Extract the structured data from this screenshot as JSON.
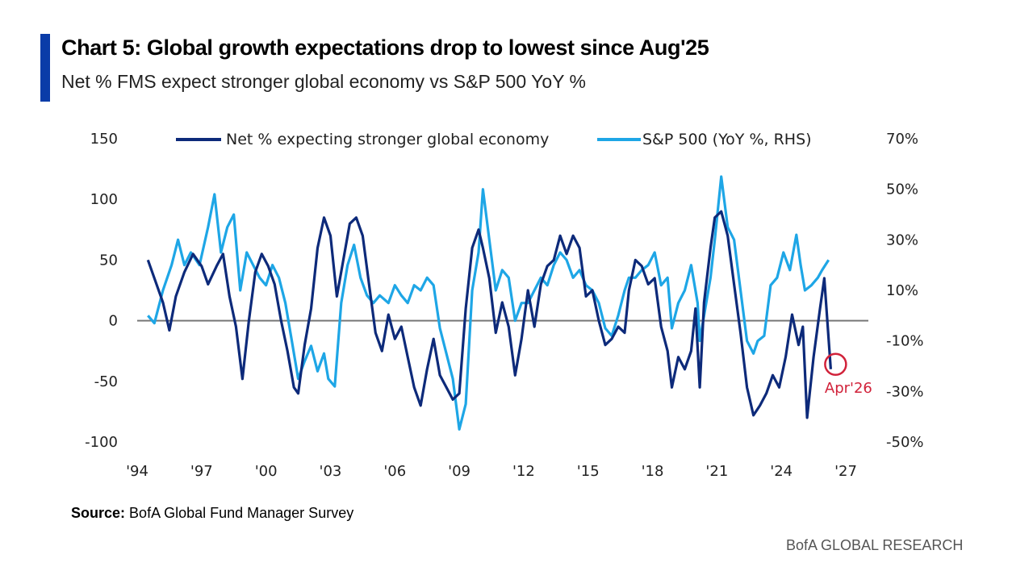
{
  "header": {
    "title": "Chart 5: Global growth expectations drop to lowest since Aug'25",
    "subtitle": "Net % FMS expect stronger global economy vs S&P 500 YoY %"
  },
  "footer": {
    "source_label": "Source:",
    "source_text": "BofA Global Fund Manager Survey",
    "brand": "BofA GLOBAL RESEARCH"
  },
  "colors": {
    "accent": "#0a3ca8",
    "series_dark": "#0d2a7a",
    "series_light": "#1ea6e6",
    "annotation": "#d1223a",
    "zero_line": "#777777"
  },
  "chart_data": {
    "type": "line",
    "title": "Chart 5: Global growth expectations drop to lowest since Aug'25",
    "subtitle": "Net % FMS expect stronger global economy vs S&P 500 YoY %",
    "xlim": [
      1994,
      2027
    ],
    "x_ticks": [
      1994,
      1997,
      2000,
      2003,
      2006,
      2009,
      2012,
      2015,
      2018,
      2021,
      2024,
      2027
    ],
    "x_tick_labels": [
      "'94",
      "'97",
      "'00",
      "'03",
      "'06",
      "'09",
      "'12",
      "'15",
      "'18",
      "'21",
      "'24",
      "'27"
    ],
    "ylim_left": [
      -100,
      150
    ],
    "y_left_ticks": [
      150,
      100,
      50,
      0,
      -50,
      -100
    ],
    "y_left_tick_labels": [
      "150",
      "100",
      "50",
      "0",
      "-50",
      "-100"
    ],
    "ylim_right": [
      -50,
      70
    ],
    "y_right_ticks": [
      70,
      50,
      30,
      10,
      -10,
      -30,
      -50
    ],
    "y_right_tick_labels": [
      "70%",
      "50%",
      "30%",
      "10%",
      "-10%",
      "-30%",
      "-50%"
    ],
    "legend_position": "top",
    "grid": false,
    "series": [
      {
        "name": "Net % expecting stronger global economy",
        "axis": "left",
        "color": "#0d2a7a",
        "points": [
          [
            1994.5,
            50
          ],
          [
            1994.8,
            35
          ],
          [
            1995.2,
            15
          ],
          [
            1995.5,
            -8
          ],
          [
            1995.8,
            20
          ],
          [
            1996.2,
            40
          ],
          [
            1996.6,
            55
          ],
          [
            1997.0,
            45
          ],
          [
            1997.3,
            30
          ],
          [
            1997.7,
            45
          ],
          [
            1998.0,
            55
          ],
          [
            1998.3,
            20
          ],
          [
            1998.6,
            -5
          ],
          [
            1998.9,
            -48
          ],
          [
            1999.2,
            0
          ],
          [
            1999.5,
            40
          ],
          [
            1999.8,
            55
          ],
          [
            2000.1,
            45
          ],
          [
            2000.4,
            30
          ],
          [
            2000.7,
            0
          ],
          [
            2001.0,
            -25
          ],
          [
            2001.3,
            -55
          ],
          [
            2001.5,
            -60
          ],
          [
            2001.8,
            -20
          ],
          [
            2002.1,
            10
          ],
          [
            2002.4,
            60
          ],
          [
            2002.7,
            85
          ],
          [
            2003.0,
            70
          ],
          [
            2003.3,
            20
          ],
          [
            2003.6,
            50
          ],
          [
            2003.9,
            80
          ],
          [
            2004.2,
            85
          ],
          [
            2004.5,
            70
          ],
          [
            2004.8,
            30
          ],
          [
            2005.1,
            -10
          ],
          [
            2005.4,
            -25
          ],
          [
            2005.7,
            5
          ],
          [
            2006.0,
            -15
          ],
          [
            2006.3,
            -5
          ],
          [
            2006.6,
            -30
          ],
          [
            2006.9,
            -55
          ],
          [
            2007.2,
            -70
          ],
          [
            2007.5,
            -40
          ],
          [
            2007.8,
            -15
          ],
          [
            2008.1,
            -45
          ],
          [
            2008.4,
            -55
          ],
          [
            2008.7,
            -65
          ],
          [
            2009.0,
            -60
          ],
          [
            2009.3,
            10
          ],
          [
            2009.6,
            60
          ],
          [
            2009.9,
            75
          ],
          [
            2010.1,
            60
          ],
          [
            2010.4,
            35
          ],
          [
            2010.7,
            -10
          ],
          [
            2011.0,
            15
          ],
          [
            2011.3,
            -5
          ],
          [
            2011.6,
            -45
          ],
          [
            2011.9,
            -15
          ],
          [
            2012.2,
            25
          ],
          [
            2012.5,
            -5
          ],
          [
            2012.8,
            30
          ],
          [
            2013.1,
            45
          ],
          [
            2013.4,
            50
          ],
          [
            2013.7,
            70
          ],
          [
            2014.0,
            55
          ],
          [
            2014.3,
            70
          ],
          [
            2014.6,
            60
          ],
          [
            2014.9,
            20
          ],
          [
            2015.2,
            25
          ],
          [
            2015.5,
            0
          ],
          [
            2015.8,
            -20
          ],
          [
            2016.1,
            -15
          ],
          [
            2016.4,
            -5
          ],
          [
            2016.7,
            -10
          ],
          [
            2016.9,
            25
          ],
          [
            2017.2,
            50
          ],
          [
            2017.5,
            45
          ],
          [
            2017.8,
            30
          ],
          [
            2018.1,
            35
          ],
          [
            2018.4,
            -5
          ],
          [
            2018.7,
            -25
          ],
          [
            2018.9,
            -55
          ],
          [
            2019.2,
            -30
          ],
          [
            2019.5,
            -40
          ],
          [
            2019.8,
            -25
          ],
          [
            2020.0,
            10
          ],
          [
            2020.2,
            -55
          ],
          [
            2020.4,
            15
          ],
          [
            2020.7,
            60
          ],
          [
            2020.9,
            85
          ],
          [
            2021.2,
            90
          ],
          [
            2021.5,
            70
          ],
          [
            2021.8,
            30
          ],
          [
            2022.1,
            -10
          ],
          [
            2022.4,
            -55
          ],
          [
            2022.7,
            -78
          ],
          [
            2023.0,
            -70
          ],
          [
            2023.3,
            -60
          ],
          [
            2023.6,
            -45
          ],
          [
            2023.9,
            -55
          ],
          [
            2024.2,
            -30
          ],
          [
            2024.5,
            5
          ],
          [
            2024.8,
            -20
          ],
          [
            2025.0,
            -5
          ],
          [
            2025.2,
            -80
          ],
          [
            2025.5,
            -30
          ],
          [
            2025.8,
            10
          ],
          [
            2026.0,
            35
          ],
          [
            2026.3,
            -40
          ]
        ]
      },
      {
        "name": "S&P 500 (YoY %, RHS)",
        "axis": "right",
        "color": "#1ea6e6",
        "points": [
          [
            1994.5,
            0
          ],
          [
            1994.8,
            -3
          ],
          [
            1995.2,
            10
          ],
          [
            1995.6,
            20
          ],
          [
            1995.9,
            30
          ],
          [
            1996.2,
            20
          ],
          [
            1996.5,
            25
          ],
          [
            1996.9,
            20
          ],
          [
            1997.3,
            35
          ],
          [
            1997.6,
            48
          ],
          [
            1997.9,
            25
          ],
          [
            1998.2,
            35
          ],
          [
            1998.5,
            40
          ],
          [
            1998.8,
            10
          ],
          [
            1999.1,
            25
          ],
          [
            1999.4,
            20
          ],
          [
            1999.7,
            15
          ],
          [
            2000.0,
            12
          ],
          [
            2000.3,
            20
          ],
          [
            2000.6,
            15
          ],
          [
            2000.9,
            5
          ],
          [
            2001.2,
            -10
          ],
          [
            2001.5,
            -25
          ],
          [
            2001.8,
            -18
          ],
          [
            2002.1,
            -12
          ],
          [
            2002.4,
            -22
          ],
          [
            2002.7,
            -15
          ],
          [
            2002.9,
            -25
          ],
          [
            2003.2,
            -28
          ],
          [
            2003.5,
            5
          ],
          [
            2003.8,
            20
          ],
          [
            2004.1,
            28
          ],
          [
            2004.4,
            15
          ],
          [
            2004.7,
            8
          ],
          [
            2005.0,
            5
          ],
          [
            2005.3,
            8
          ],
          [
            2005.7,
            5
          ],
          [
            2006.0,
            12
          ],
          [
            2006.3,
            8
          ],
          [
            2006.6,
            5
          ],
          [
            2006.9,
            12
          ],
          [
            2007.2,
            10
          ],
          [
            2007.5,
            15
          ],
          [
            2007.8,
            12
          ],
          [
            2008.1,
            -5
          ],
          [
            2008.4,
            -15
          ],
          [
            2008.7,
            -25
          ],
          [
            2009.0,
            -45
          ],
          [
            2009.3,
            -35
          ],
          [
            2009.6,
            10
          ],
          [
            2009.9,
            25
          ],
          [
            2010.1,
            50
          ],
          [
            2010.4,
            30
          ],
          [
            2010.7,
            10
          ],
          [
            2011.0,
            18
          ],
          [
            2011.3,
            15
          ],
          [
            2011.6,
            -2
          ],
          [
            2011.9,
            5
          ],
          [
            2012.2,
            5
          ],
          [
            2012.5,
            10
          ],
          [
            2012.8,
            15
          ],
          [
            2013.1,
            12
          ],
          [
            2013.4,
            20
          ],
          [
            2013.7,
            25
          ],
          [
            2014.0,
            22
          ],
          [
            2014.3,
            15
          ],
          [
            2014.6,
            18
          ],
          [
            2014.9,
            12
          ],
          [
            2015.2,
            10
          ],
          [
            2015.5,
            5
          ],
          [
            2015.8,
            -5
          ],
          [
            2016.1,
            -8
          ],
          [
            2016.4,
            0
          ],
          [
            2016.7,
            10
          ],
          [
            2016.9,
            15
          ],
          [
            2017.2,
            15
          ],
          [
            2017.5,
            18
          ],
          [
            2017.8,
            20
          ],
          [
            2018.1,
            25
          ],
          [
            2018.4,
            12
          ],
          [
            2018.7,
            15
          ],
          [
            2018.9,
            -5
          ],
          [
            2019.2,
            5
          ],
          [
            2019.5,
            10
          ],
          [
            2019.8,
            20
          ],
          [
            2020.1,
            5
          ],
          [
            2020.2,
            -10
          ],
          [
            2020.4,
            0
          ],
          [
            2020.7,
            15
          ],
          [
            2020.9,
            30
          ],
          [
            2021.2,
            55
          ],
          [
            2021.5,
            35
          ],
          [
            2021.8,
            30
          ],
          [
            2022.1,
            10
          ],
          [
            2022.4,
            -10
          ],
          [
            2022.7,
            -15
          ],
          [
            2022.9,
            -10
          ],
          [
            2023.2,
            -8
          ],
          [
            2023.5,
            12
          ],
          [
            2023.8,
            15
          ],
          [
            2024.1,
            25
          ],
          [
            2024.4,
            18
          ],
          [
            2024.7,
            32
          ],
          [
            2024.9,
            20
          ],
          [
            2025.1,
            10
          ],
          [
            2025.4,
            12
          ],
          [
            2025.7,
            15
          ],
          [
            2025.9,
            18
          ],
          [
            2026.2,
            22
          ]
        ]
      }
    ],
    "annotations": [
      {
        "text": "Apr'26",
        "x": 2026.3,
        "y": -40,
        "axis": "left",
        "style": "circle"
      }
    ]
  }
}
